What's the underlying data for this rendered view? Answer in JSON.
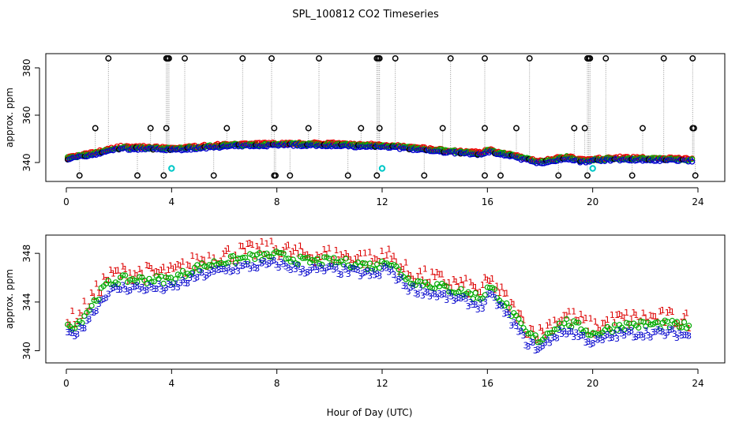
{
  "title": "SPL_100812  CO2 Timeseries",
  "xlabel": "Hour of Day (UTC)",
  "chart_data": [
    {
      "type": "scatter",
      "panel": "top",
      "ylabel": "approx. ppm",
      "xlim": [
        0,
        24
      ],
      "ylim": [
        332,
        386
      ],
      "x_ticks": [
        0,
        4,
        8,
        12,
        16,
        20,
        24
      ],
      "y_ticks": [
        340,
        360,
        380
      ],
      "baseline_key": [
        [
          0,
          341.5
        ],
        [
          1,
          343.5
        ],
        [
          2,
          346
        ],
        [
          3,
          346
        ],
        [
          4,
          345.5
        ],
        [
          6,
          347
        ],
        [
          8,
          347.5
        ],
        [
          9,
          347.5
        ],
        [
          10,
          347.5
        ],
        [
          11,
          347
        ],
        [
          12,
          347
        ],
        [
          13,
          346
        ],
        [
          14,
          345
        ],
        [
          15.8,
          343.5
        ],
        [
          16,
          345
        ],
        [
          17,
          342.5
        ],
        [
          18,
          340
        ],
        [
          19,
          342
        ],
        [
          19.6,
          340.5
        ],
        [
          20,
          341
        ],
        [
          21,
          341.5
        ],
        [
          23.8,
          341
        ]
      ],
      "spikes_high": [
        1.6,
        3.8,
        3.85,
        3.9,
        4.5,
        6.7,
        7.8,
        9.6,
        11.8,
        11.85,
        11.9,
        12.5,
        14.6,
        15.9,
        17.6,
        19.8,
        19.85,
        19.9,
        20.5,
        22.7,
        23.8
      ],
      "spikes_mid": [
        1.1,
        3.2,
        3.8,
        6.1,
        7.9,
        9.2,
        11.2,
        11.9,
        14.3,
        15.9,
        17.1,
        19.3,
        19.7,
        21.9,
        23.8,
        23.85
      ],
      "spikes_low": [
        0.5,
        2.7,
        3.7,
        5.6,
        7.9,
        7.95,
        8.5,
        10.7,
        11.8,
        13.6,
        15.9,
        16.5,
        18.7,
        19.8,
        21.5,
        23.9
      ],
      "spike_values": {
        "high": 384,
        "mid": 354.5,
        "low": 334.5
      },
      "cyan_points": [
        [
          4.0,
          337.5
        ],
        [
          12.0,
          337.5
        ],
        [
          20.0,
          337.5
        ]
      ],
      "series_colors": {
        "black": "#000000",
        "red": "#ee0000",
        "green": "#00b000",
        "blue": "#0000cc",
        "cyan": "#00c8c8",
        "line": "#9a9a9a"
      }
    },
    {
      "type": "scatter",
      "panel": "bottom",
      "ylabel": "approx. ppm",
      "xlim": [
        0,
        24
      ],
      "ylim": [
        339,
        349.5
      ],
      "x_ticks": [
        0,
        4,
        8,
        12,
        16,
        20,
        24
      ],
      "y_ticks": [
        340,
        344,
        348
      ],
      "series": [
        {
          "name": "1",
          "symbol": "1",
          "color": "#dd0000",
          "offset": 0.9,
          "noise": 0.7
        },
        {
          "name": "2",
          "symbol": "o",
          "color": "#00aa00",
          "offset": 0.35,
          "noise": 0.35
        },
        {
          "name": "3",
          "symbol": "3",
          "color": "#0000cc",
          "offset": -0.35,
          "noise": 0.35
        }
      ],
      "baseline_key": [
        [
          0,
          341.5
        ],
        [
          0.5,
          342
        ],
        [
          1,
          343.5
        ],
        [
          1.5,
          345
        ],
        [
          2,
          345.5
        ],
        [
          3,
          345.5
        ],
        [
          3.6,
          345.5
        ],
        [
          4,
          345.5
        ],
        [
          5,
          346.5
        ],
        [
          6,
          347
        ],
        [
          7,
          347.3
        ],
        [
          8,
          347.5
        ],
        [
          9,
          347
        ],
        [
          10,
          347
        ],
        [
          11,
          346.8
        ],
        [
          11.9,
          346.5
        ],
        [
          12,
          347.3
        ],
        [
          12.5,
          346.5
        ],
        [
          13,
          345.5
        ],
        [
          14,
          345
        ],
        [
          15,
          344.5
        ],
        [
          15.8,
          344
        ],
        [
          16,
          344.8
        ],
        [
          16.3,
          344.5
        ],
        [
          17,
          342.5
        ],
        [
          17.5,
          341
        ],
        [
          18,
          340.5
        ],
        [
          18.5,
          341.5
        ],
        [
          19,
          342
        ],
        [
          19.6,
          341.5
        ],
        [
          20,
          341
        ],
        [
          21,
          341.7
        ],
        [
          22,
          341.8
        ],
        [
          23,
          341.8
        ],
        [
          23.7,
          341.6
        ]
      ]
    }
  ]
}
